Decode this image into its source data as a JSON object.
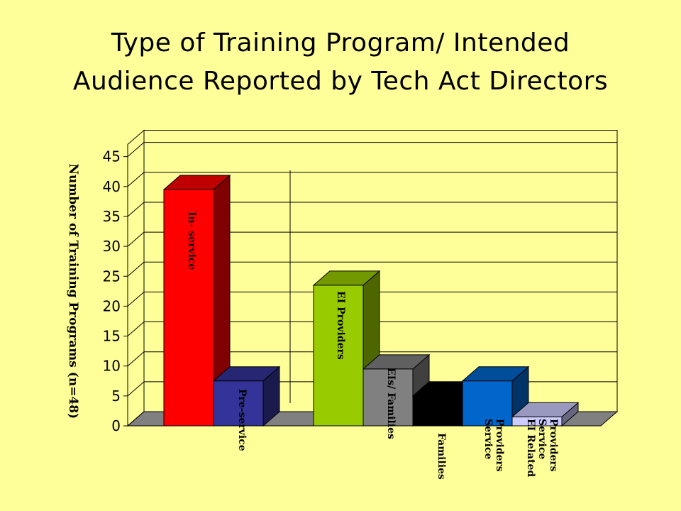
{
  "chart_data": {
    "type": "bar",
    "title_line1": "Type of Training Program/ Intended",
    "title_line2": "Audience Reported by Tech Act Directors",
    "ylabel": "Number of Training Programs (n=48)",
    "ylim": [
      0,
      45
    ],
    "yticks": [
      0,
      5,
      10,
      15,
      20,
      25,
      30,
      35,
      40,
      45
    ],
    "grid": true,
    "series": [
      {
        "categories": [
          "In- service",
          "Pre-service"
        ],
        "values": [
          39.5,
          7.5
        ],
        "colors": [
          "#ff0000",
          "#333399"
        ]
      },
      {
        "categories": [
          "EI Providers",
          "EIs/ Families",
          "Families",
          "Service Providers",
          "EI Related Service Providers"
        ],
        "values": [
          23.5,
          9.5,
          5,
          7.5,
          1.5
        ],
        "colors": [
          "#99cc00",
          "#808080",
          "#000000",
          "#0066cc",
          "#ccccff"
        ]
      }
    ]
  }
}
